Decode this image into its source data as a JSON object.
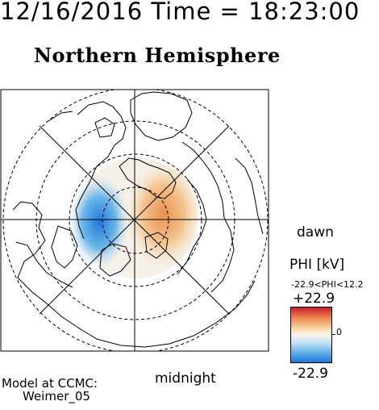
{
  "header": {
    "timestamp": "12/16/2016 Time = 18:23:00"
  },
  "plot": {
    "title": "Northern Hemisphere",
    "labels": {
      "right": "dawn",
      "bottom": "midnight"
    }
  },
  "colorbar": {
    "title": "PHI [kV]",
    "range_label": "-22.9<PHI<12.2",
    "max_label": "+22.9",
    "mid_label": "0",
    "min_label": "-22.9",
    "colors": {
      "positive": "#c81e2a",
      "neutral": "#f8f3ec",
      "negative": "#1f78d8"
    }
  },
  "credit": {
    "line1": "Model at CCMC:",
    "line2": "Weimer_05"
  }
}
